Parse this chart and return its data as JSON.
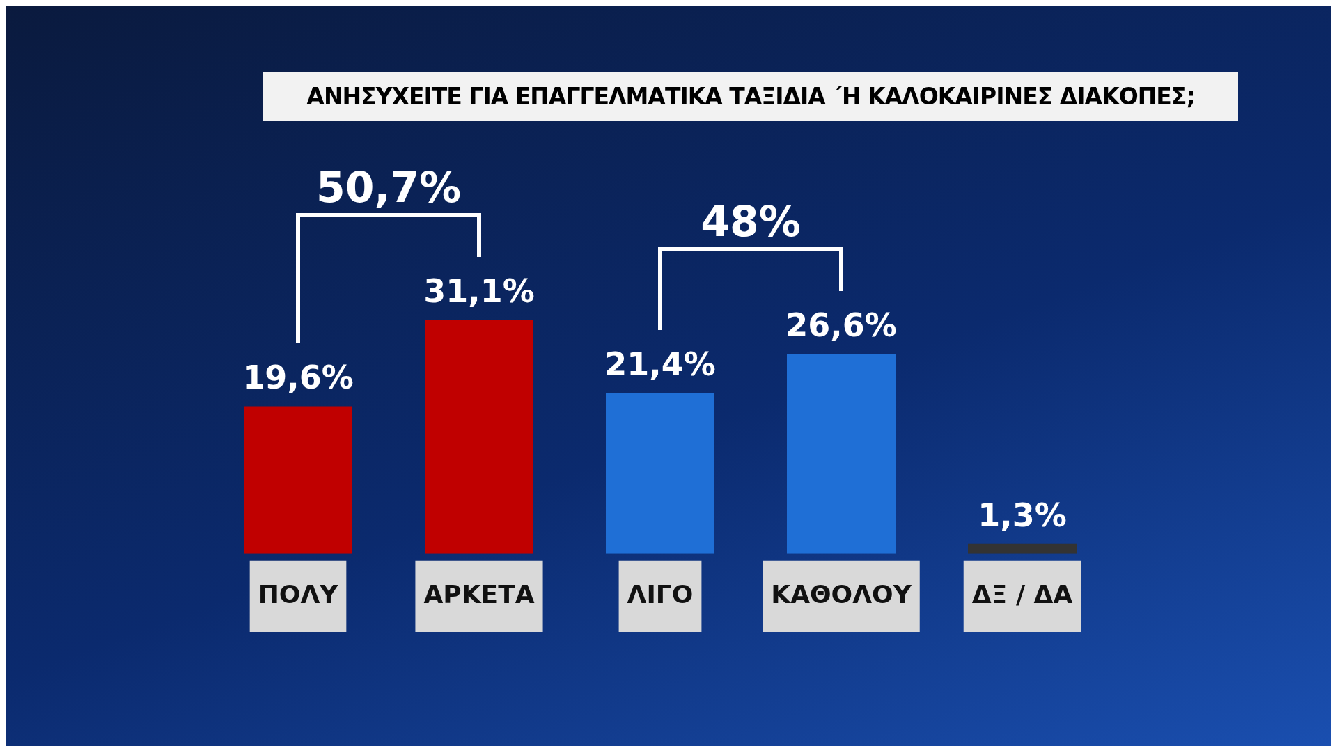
{
  "chart_data": {
    "type": "bar",
    "title": "ΑΝΗΣΥΧΕΙΤΕ ΓΙΑ ΕΠΑΓΓΕΛΜΑΤΙΚΑ ΤΑΞΙΔΙΑ ΄Η ΚΑΛΟΚΑΙΡΙΝΕΣ ΔΙΑΚΟΠΕΣ;",
    "categories": [
      "ΠΟΛΥ",
      "ΑΡΚΕΤΑ",
      "ΛΙΓΟ",
      "ΚΑΘΟΛΟΥ",
      "ΔΞ / ΔΑ"
    ],
    "values": [
      19.6,
      31.1,
      21.4,
      26.6,
      1.3
    ],
    "colors": [
      "#c00000",
      "#c00000",
      "#1f6fd6",
      "#1f6fd6",
      "#333333"
    ],
    "value_labels": [
      "19,6%",
      "31,1%",
      "21,4%",
      "26,6%",
      "1,3%"
    ],
    "annotations": [
      "50,7%",
      "48%"
    ],
    "tick_labels": "x",
    "grid": false,
    "legend": false
  }
}
